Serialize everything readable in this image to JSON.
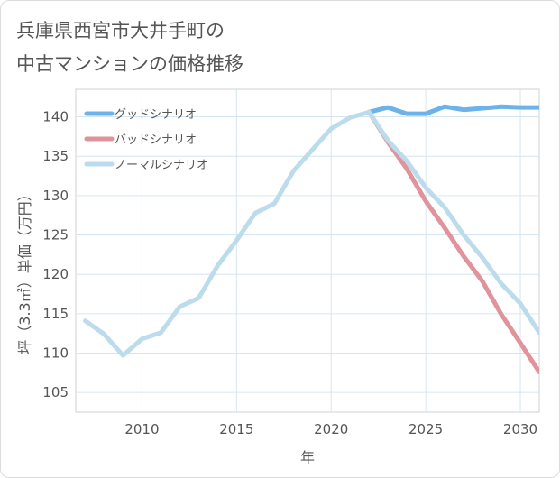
{
  "chart_data": {
    "type": "line",
    "title_lines": [
      "兵庫県西宮市大井手町の",
      "中古マンションの価格推移"
    ],
    "xlabel": "年",
    "ylabel": "坪（3.3㎡）単価（万円）",
    "xlim": [
      2006.5,
      2031
    ],
    "ylim": [
      102.5,
      143.5
    ],
    "x_ticks": [
      2010,
      2015,
      2020,
      2025,
      2030
    ],
    "y_ticks": [
      105,
      110,
      115,
      120,
      125,
      130,
      135,
      140
    ],
    "grid": true,
    "legend_position": "top-left",
    "series": [
      {
        "name": "グッドシナリオ",
        "color": "#6db3ea",
        "x": [
          2022,
          2023,
          2024,
          2025,
          2026,
          2027,
          2028,
          2029,
          2030,
          2031
        ],
        "y": [
          140.6,
          141.2,
          140.4,
          140.4,
          141.3,
          140.9,
          141.1,
          141.3,
          141.2,
          141.2
        ]
      },
      {
        "name": "バッドシナリオ",
        "color": "#e0939b",
        "x": [
          2022,
          2023,
          2024,
          2025,
          2026,
          2027,
          2028,
          2029,
          2030,
          2031
        ],
        "y": [
          140.6,
          136.8,
          133.4,
          129.3,
          125.9,
          122.3,
          119.1,
          114.9,
          111.3,
          107.6
        ]
      },
      {
        "name": "ノーマルシナリオ",
        "color": "#bcdcec",
        "x": [
          2007,
          2008,
          2009,
          2010,
          2011,
          2012,
          2013,
          2014,
          2015,
          2016,
          2017,
          2018,
          2019,
          2020,
          2021,
          2022,
          2023,
          2024,
          2025,
          2026,
          2027,
          2028,
          2029,
          2030,
          2031
        ],
        "y": [
          114.1,
          112.4,
          109.7,
          111.8,
          112.6,
          115.9,
          117.0,
          121.1,
          124.3,
          127.8,
          129.0,
          133.1,
          135.8,
          138.5,
          139.9,
          140.6,
          137.0,
          134.4,
          131.0,
          128.5,
          125.0,
          122.1,
          118.8,
          116.3,
          112.6
        ]
      }
    ]
  }
}
